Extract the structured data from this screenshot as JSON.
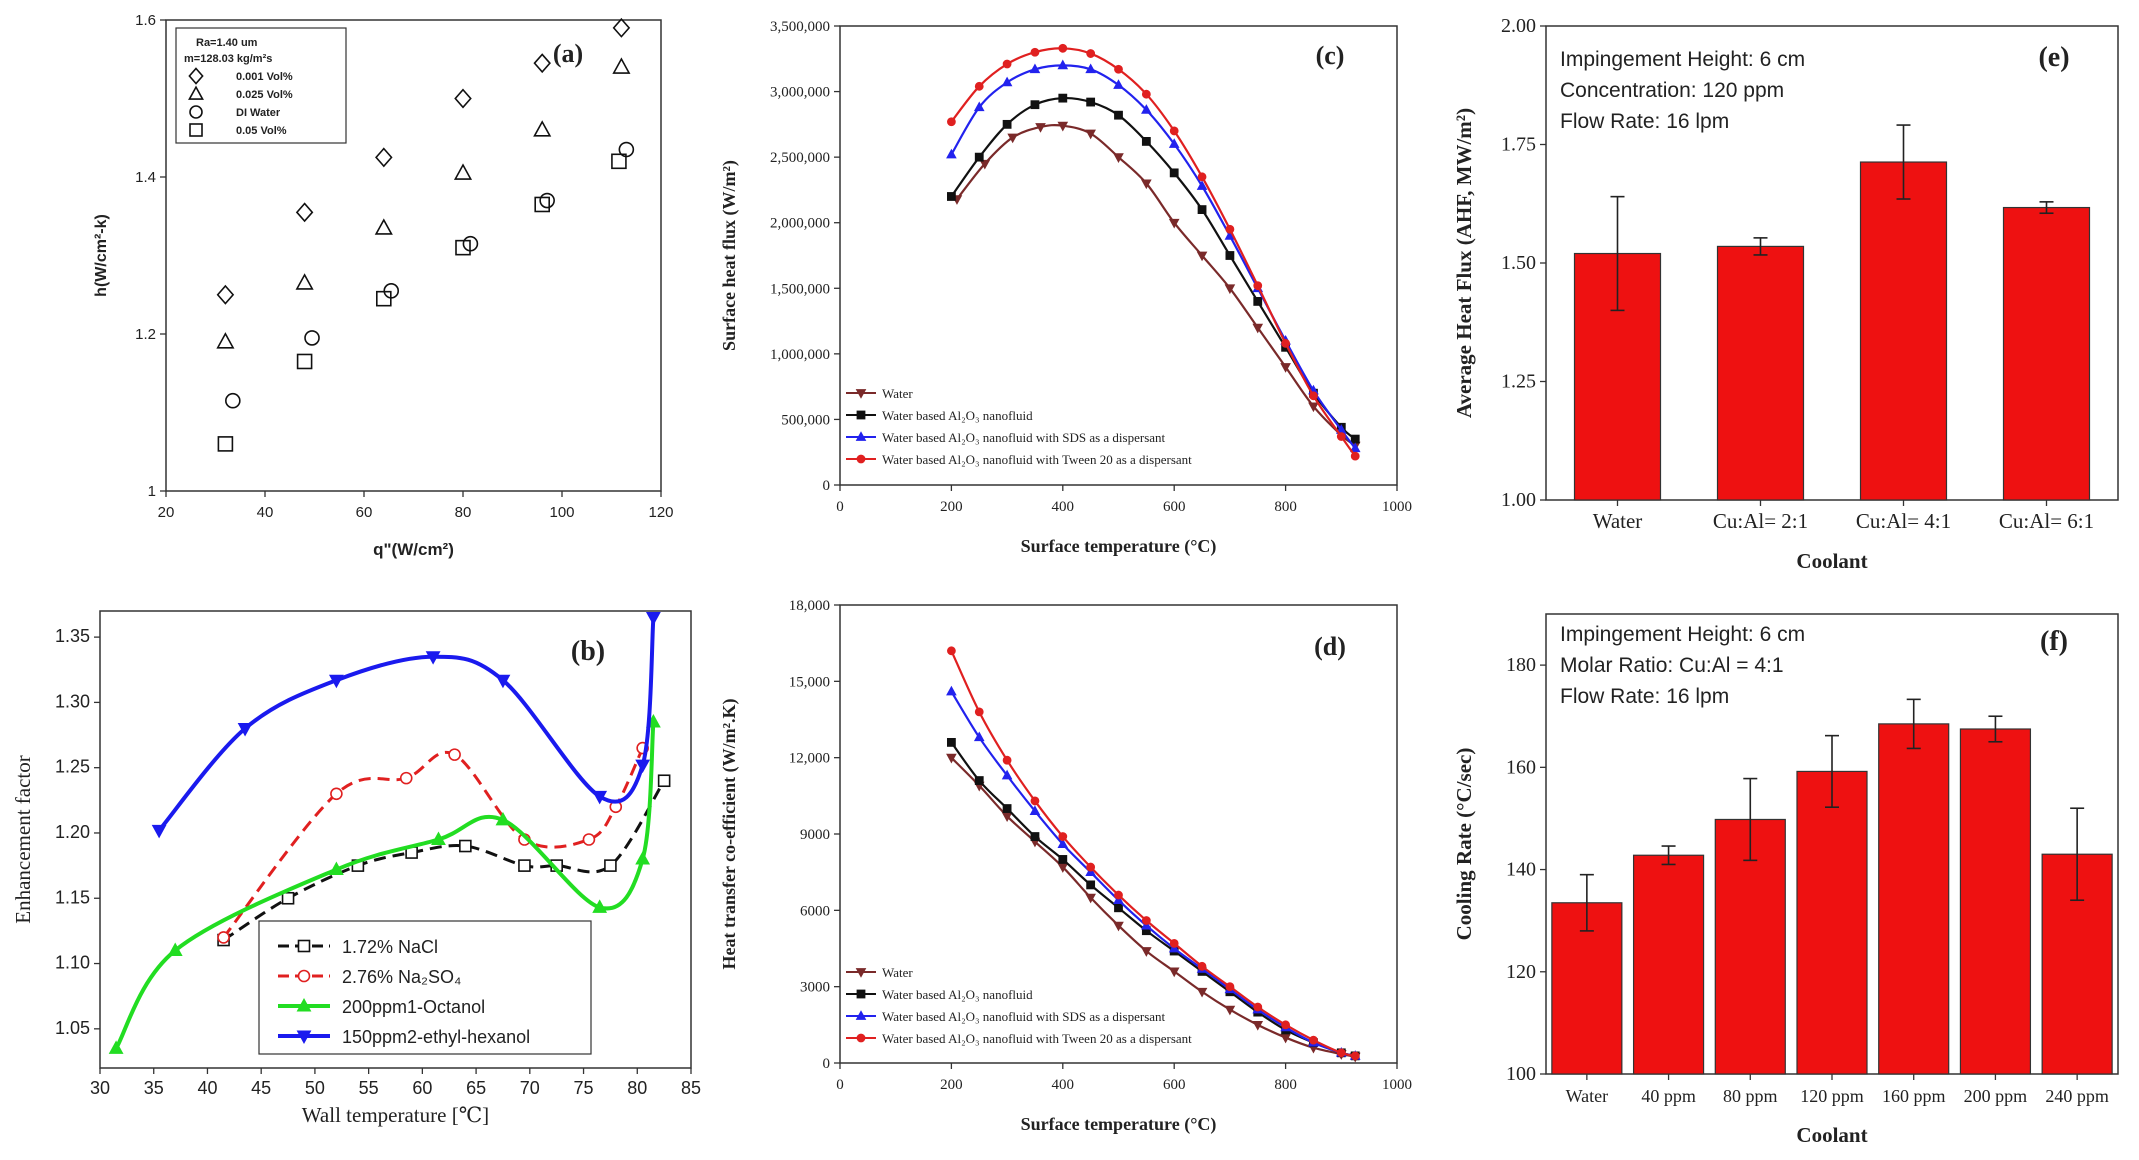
{
  "figure_title": "Heat transfer performance panels (a)-(f)",
  "colors": {
    "bar_fill": "#ee1111",
    "bar_stroke": "#333333",
    "water": "#7a2a2a",
    "nanofluid": "#111111",
    "sds": "#2222ee",
    "tween": "#e02020",
    "nacl": "#111111",
    "na2so4": "#e02020",
    "octanol": "#22dd22",
    "ethylhexanol": "#1a1aee"
  },
  "chart_data": [
    {
      "id": "a",
      "type": "scatter",
      "panel_label": "(a)",
      "xlabel": "q\"(W/cm²)",
      "ylabel": "h(W/cm²-k)",
      "xlim": [
        20,
        120
      ],
      "ylim": [
        1.0,
        1.6
      ],
      "xticks": [
        "20",
        "40",
        "60",
        "80",
        "100",
        "120"
      ],
      "yticks": [
        "1",
        "1.2",
        "1.4",
        "1.6"
      ],
      "legend_header": [
        "Ra=1.40 um",
        "m=128.03 kg/m²s"
      ],
      "series": [
        {
          "name": "0.001 Vol%",
          "marker": "diamond",
          "x": [
            32,
            48,
            64,
            80,
            96,
            112
          ],
          "y": [
            1.25,
            1.355,
            1.425,
            1.5,
            1.545,
            1.59
          ]
        },
        {
          "name": "0.025 Vol%",
          "marker": "triangle",
          "x": [
            32,
            48,
            64,
            80,
            96,
            112
          ],
          "y": [
            1.19,
            1.265,
            1.335,
            1.405,
            1.46,
            1.54
          ]
        },
        {
          "name": "DI Water",
          "marker": "circle",
          "x": [
            33.5,
            49.5,
            65.5,
            81.5,
            97,
            113
          ],
          "y": [
            1.115,
            1.195,
            1.255,
            1.315,
            1.37,
            1.435
          ]
        },
        {
          "name": "0.05 Vol%",
          "marker": "square",
          "x": [
            32,
            48,
            64,
            80,
            96,
            111.5
          ],
          "y": [
            1.06,
            1.165,
            1.245,
            1.31,
            1.365,
            1.42
          ]
        }
      ]
    },
    {
      "id": "b",
      "type": "line",
      "panel_label": "(b)",
      "xlabel": "Wall temperature [℃]",
      "ylabel": "Enhancement factor",
      "xlim": [
        30,
        85
      ],
      "ylim": [
        1.02,
        1.37
      ],
      "xticks": [
        "30",
        "35",
        "40",
        "45",
        "50",
        "55",
        "60",
        "65",
        "70",
        "75",
        "80",
        "85"
      ],
      "yticks": [
        "1.05",
        "1.10",
        "1.15",
        "1.20",
        "1.25",
        "1.30",
        "1.35"
      ],
      "series": [
        {
          "name": "1.72%  NaCl",
          "marker": "square",
          "x": [
            41.5,
            47.5,
            54,
            59,
            64,
            69.5,
            72.5,
            77.5,
            82.5
          ],
          "y": [
            1.118,
            1.15,
            1.175,
            1.185,
            1.19,
            1.175,
            1.175,
            1.175,
            1.24
          ]
        },
        {
          "name": "2.76%  Na₂SO₄",
          "marker": "circle",
          "x": [
            41.5,
            52,
            58.5,
            63,
            69.5,
            75.5,
            78,
            80.5
          ],
          "y": [
            1.12,
            1.23,
            1.242,
            1.26,
            1.195,
            1.195,
            1.22,
            1.265
          ]
        },
        {
          "name": "200ppm1-Octanol",
          "marker": "triangle",
          "x": [
            31.5,
            37,
            52,
            61.5,
            67.5,
            76.5,
            80.5,
            81.5
          ],
          "y": [
            1.035,
            1.11,
            1.172,
            1.195,
            1.21,
            1.143,
            1.18,
            1.285
          ]
        },
        {
          "name": "150ppm2-ethyl-hexanol",
          "marker": "triangle-down",
          "x": [
            35.5,
            43.5,
            52,
            61,
            67.5,
            76.5,
            80.5,
            81.5
          ],
          "y": [
            1.202,
            1.28,
            1.317,
            1.335,
            1.317,
            1.228,
            1.252,
            1.365
          ]
        }
      ]
    },
    {
      "id": "c",
      "type": "line",
      "panel_label": "(c)",
      "xlabel": "Surface temperature (°C)",
      "ylabel": "Surface heat flux (W/m²)",
      "xlim": [
        0,
        1000
      ],
      "ylim": [
        0,
        3500000
      ],
      "xticks": [
        "0",
        "200",
        "400",
        "600",
        "800",
        "1000"
      ],
      "yticks": [
        "0",
        "500,000",
        "1,000,000",
        "1,500,000",
        "2,000,000",
        "2,500,000",
        "3,000,000",
        "3,500,000"
      ],
      "series": [
        {
          "name": "Water",
          "marker": "triangle-down",
          "x": [
            210,
            260,
            310,
            360,
            400,
            450,
            500,
            550,
            600,
            650,
            700,
            750,
            800,
            850,
            900,
            925
          ],
          "y": [
            2180000,
            2450000,
            2650000,
            2730000,
            2740000,
            2680000,
            2500000,
            2300000,
            2000000,
            1750000,
            1500000,
            1200000,
            900000,
            600000,
            380000,
            300000
          ]
        },
        {
          "name": "Water based Al₂O₃ nanofluid",
          "marker": "square",
          "x": [
            200,
            250,
            300,
            350,
            400,
            450,
            500,
            550,
            600,
            650,
            700,
            750,
            800,
            850,
            900,
            925
          ],
          "y": [
            2200000,
            2500000,
            2750000,
            2900000,
            2950000,
            2920000,
            2820000,
            2620000,
            2380000,
            2100000,
            1750000,
            1400000,
            1050000,
            700000,
            440000,
            350000
          ]
        },
        {
          "name": "Water based Al₂O₃ nanofluid with SDS as a dispersant",
          "marker": "triangle",
          "x": [
            200,
            250,
            300,
            350,
            400,
            450,
            500,
            550,
            600,
            650,
            700,
            750,
            800,
            850,
            900,
            925
          ],
          "y": [
            2520000,
            2880000,
            3070000,
            3170000,
            3200000,
            3170000,
            3050000,
            2860000,
            2600000,
            2280000,
            1900000,
            1500000,
            1100000,
            720000,
            420000,
            280000
          ]
        },
        {
          "name": "Water based Al₂O₃ nanofluid with Tween 20 as a dispersant",
          "marker": "circle",
          "x": [
            200,
            250,
            300,
            350,
            400,
            450,
            500,
            550,
            600,
            650,
            700,
            750,
            800,
            850,
            900,
            925
          ],
          "y": [
            2770000,
            3040000,
            3210000,
            3300000,
            3330000,
            3290000,
            3170000,
            2980000,
            2700000,
            2350000,
            1950000,
            1520000,
            1080000,
            680000,
            370000,
            220000
          ]
        }
      ]
    },
    {
      "id": "d",
      "type": "line",
      "panel_label": "(d)",
      "xlabel": "Surface temperature (°C)",
      "ylabel": "Heat transfer co-efficient (W/m².K)",
      "xlim": [
        0,
        1000
      ],
      "ylim": [
        0,
        18000
      ],
      "xticks": [
        "0",
        "200",
        "400",
        "600",
        "800",
        "1000"
      ],
      "yticks": [
        "0",
        "3000",
        "6000",
        "9000",
        "12,000",
        "15,000",
        "18,000"
      ],
      "series": [
        {
          "name": "Water",
          "marker": "triangle-down",
          "x": [
            200,
            250,
            300,
            350,
            400,
            450,
            500,
            550,
            600,
            650,
            700,
            750,
            800,
            850,
            900,
            925
          ],
          "y": [
            12000,
            10900,
            9700,
            8700,
            7700,
            6500,
            5400,
            4400,
            3600,
            2800,
            2100,
            1500,
            1000,
            600,
            350,
            250
          ]
        },
        {
          "name": "Water based Al₂O₃ nanofluid",
          "marker": "square",
          "x": [
            200,
            250,
            300,
            350,
            400,
            450,
            500,
            550,
            600,
            650,
            700,
            750,
            800,
            850,
            900,
            925
          ],
          "y": [
            12600,
            11100,
            10000,
            8900,
            8000,
            7000,
            6100,
            5200,
            4400,
            3600,
            2800,
            2000,
            1300,
            800,
            400,
            280
          ]
        },
        {
          "name": "Water based Al₂O₃ nanofluid with SDS as a dispersant",
          "marker": "triangle",
          "x": [
            200,
            250,
            300,
            350,
            400,
            450,
            500,
            550,
            600,
            650,
            700,
            750,
            800,
            850,
            900,
            925
          ],
          "y": [
            14600,
            12800,
            11300,
            9900,
            8600,
            7500,
            6400,
            5400,
            4500,
            3700,
            2900,
            2100,
            1400,
            800,
            400,
            280
          ]
        },
        {
          "name": "Water based Al₂O₃ nanofluid with Tween 20 as a dispersant",
          "marker": "circle",
          "x": [
            200,
            250,
            300,
            350,
            400,
            450,
            500,
            550,
            600,
            650,
            700,
            750,
            800,
            850,
            900,
            925
          ],
          "y": [
            16200,
            13800,
            11900,
            10300,
            8900,
            7700,
            6600,
            5600,
            4700,
            3800,
            3000,
            2200,
            1500,
            900,
            400,
            280
          ]
        }
      ]
    },
    {
      "id": "e",
      "type": "bar",
      "panel_label": "(e)",
      "xlabel": "Coolant",
      "ylabel": "Average  Heat Flux (AHF, MW/m²)",
      "ylim": [
        1.0,
        2.0
      ],
      "yticks": [
        "1.00",
        "1.25",
        "1.50",
        "1.75",
        "2.00"
      ],
      "categories": [
        "Water",
        "Cu:Al= 2:1",
        "Cu:Al= 4:1",
        "Cu:Al= 6:1"
      ],
      "values": [
        1.52,
        1.535,
        1.713,
        1.617
      ],
      "errors": [
        0.12,
        0.018,
        0.078,
        0.012
      ],
      "annotation": [
        "Impingement Height: 6 cm",
        "Concentration: 120 ppm",
        "Flow Rate: 16 lpm"
      ]
    },
    {
      "id": "f",
      "type": "bar",
      "panel_label": "(f)",
      "xlabel": "Coolant",
      "ylabel": "Cooling Rate (°C/sec)",
      "ylim": [
        100,
        190
      ],
      "yticks": [
        "100",
        "120",
        "140",
        "160",
        "180"
      ],
      "categories": [
        "Water",
        "40 ppm",
        "80 ppm",
        "120 ppm",
        "160 ppm",
        "200 ppm",
        "240 ppm"
      ],
      "values": [
        133.5,
        142.8,
        149.8,
        159.2,
        168.5,
        167.5,
        143.0
      ],
      "errors": [
        5.5,
        1.8,
        8.0,
        7.0,
        4.8,
        2.5,
        9.0
      ],
      "annotation": [
        "Impingement Height: 6 cm",
        "Molar Ratio: Cu:Al = 4:1",
        "Flow Rate: 16 lpm"
      ]
    }
  ]
}
